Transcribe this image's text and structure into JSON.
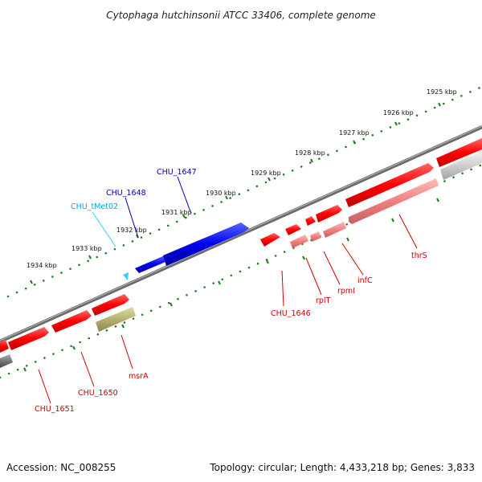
{
  "title": "Cytophaga hutchinsonii ATCC 33406, complete genome",
  "accession": "Accession: NC_008255",
  "summary": "Topology: circular; Length: 4,433,218 bp; Genes: 3,833",
  "colors": {
    "forward_gene": "#ff0000",
    "reverse_gene_light": "#f08080",
    "blue_gene": "#0000ee",
    "trna_gene": "#33ccff",
    "olive_gene": "#b5b070",
    "backbone": "#7a7a7a",
    "tick": "#1a7f1a",
    "label_red": "#cc0000",
    "label_blue": "#0000aa",
    "label_cyan": "#00aadd"
  },
  "scale_labels": [
    "1925 kbp",
    "1926 kbp",
    "1927 kbp",
    "1928 kbp",
    "1929 kbp",
    "1930 kbp",
    "1931 kbp",
    "1932 kbp",
    "1933 kbp",
    "1934 kbp"
  ],
  "gene_labels": [
    {
      "name": "CHU_1647",
      "color": "blue"
    },
    {
      "name": "CHU_1648",
      "color": "blue"
    },
    {
      "name": "CHU_tMet02",
      "color": "cyan"
    },
    {
      "name": "CHU_1646",
      "color": "red"
    },
    {
      "name": "rplT",
      "color": "red"
    },
    {
      "name": "rpmI",
      "color": "red"
    },
    {
      "name": "infC",
      "color": "red"
    },
    {
      "name": "thrS",
      "color": "red"
    },
    {
      "name": "msrA",
      "color": "red"
    },
    {
      "name": "CHU_1650",
      "color": "red"
    },
    {
      "name": "CHU_1651",
      "color": "red"
    }
  ]
}
